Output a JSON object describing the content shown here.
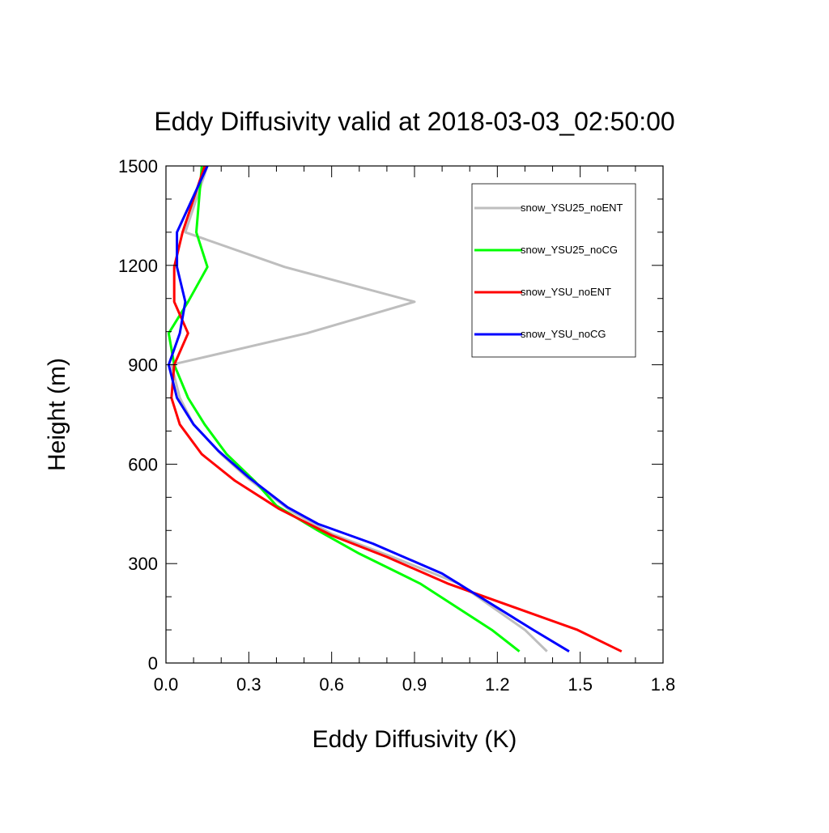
{
  "chart_data": {
    "type": "line",
    "title": "Eddy Diffusivity valid at 2018-03-03_02:50:00",
    "xlabel": "Eddy Diffusivity (K)",
    "ylabel": "Height (m)",
    "xlim": [
      0.0,
      1.8
    ],
    "ylim": [
      0,
      1500
    ],
    "xticks": [
      "0.0",
      "0.3",
      "0.6",
      "0.9",
      "1.2",
      "1.5",
      "1.8"
    ],
    "xtick_values": [
      0.0,
      0.3,
      0.6,
      0.9,
      1.2,
      1.5,
      1.8
    ],
    "yticks": [
      "0",
      "300",
      "600",
      "900",
      "1200",
      "1500"
    ],
    "ytick_values": [
      0,
      300,
      600,
      900,
      1200,
      1500
    ],
    "grid": false,
    "legend_position": "top-right",
    "series": [
      {
        "name": "snow_YSU25_noENT",
        "color": "#bebebe",
        "points": [
          [
            1.38,
            35
          ],
          [
            1.3,
            100
          ],
          [
            1.06,
            240
          ],
          [
            0.82,
            320
          ],
          [
            0.6,
            390
          ],
          [
            0.45,
            460
          ],
          [
            0.3,
            555
          ],
          [
            0.2,
            630
          ],
          [
            0.1,
            720
          ],
          [
            0.05,
            800
          ],
          [
            0.02,
            900
          ],
          [
            0.51,
            995
          ],
          [
            0.9,
            1090
          ],
          [
            0.43,
            1195
          ],
          [
            0.07,
            1300
          ],
          [
            0.15,
            1500
          ]
        ]
      },
      {
        "name": "snow_YSU25_noCG",
        "color": "#00ff00",
        "points": [
          [
            1.28,
            35
          ],
          [
            1.18,
            100
          ],
          [
            0.92,
            240
          ],
          [
            0.7,
            330
          ],
          [
            0.55,
            400
          ],
          [
            0.4,
            475
          ],
          [
            0.32,
            550
          ],
          [
            0.22,
            630
          ],
          [
            0.14,
            720
          ],
          [
            0.08,
            800
          ],
          [
            0.03,
            900
          ],
          [
            0.01,
            995
          ],
          [
            0.08,
            1090
          ],
          [
            0.15,
            1195
          ],
          [
            0.11,
            1300
          ],
          [
            0.13,
            1500
          ]
        ]
      },
      {
        "name": "snow_YSU_noENT",
        "color": "#ff0000",
        "points": [
          [
            1.65,
            35
          ],
          [
            1.49,
            100
          ],
          [
            1.02,
            240
          ],
          [
            0.8,
            320
          ],
          [
            0.6,
            385
          ],
          [
            0.41,
            465
          ],
          [
            0.25,
            550
          ],
          [
            0.13,
            630
          ],
          [
            0.05,
            720
          ],
          [
            0.02,
            800
          ],
          [
            0.03,
            900
          ],
          [
            0.08,
            995
          ],
          [
            0.03,
            1090
          ],
          [
            0.03,
            1195
          ],
          [
            0.06,
            1300
          ],
          [
            0.14,
            1500
          ]
        ]
      },
      {
        "name": "snow_YSU_noCG",
        "color": "#0000ff",
        "points": [
          [
            1.46,
            35
          ],
          [
            1.33,
            100
          ],
          [
            1.0,
            270
          ],
          [
            0.75,
            360
          ],
          [
            0.55,
            420
          ],
          [
            0.44,
            470
          ],
          [
            0.3,
            560
          ],
          [
            0.19,
            640
          ],
          [
            0.1,
            720
          ],
          [
            0.04,
            800
          ],
          [
            0.01,
            900
          ],
          [
            0.05,
            995
          ],
          [
            0.07,
            1090
          ],
          [
            0.04,
            1195
          ],
          [
            0.04,
            1300
          ],
          [
            0.15,
            1500
          ]
        ]
      }
    ]
  }
}
